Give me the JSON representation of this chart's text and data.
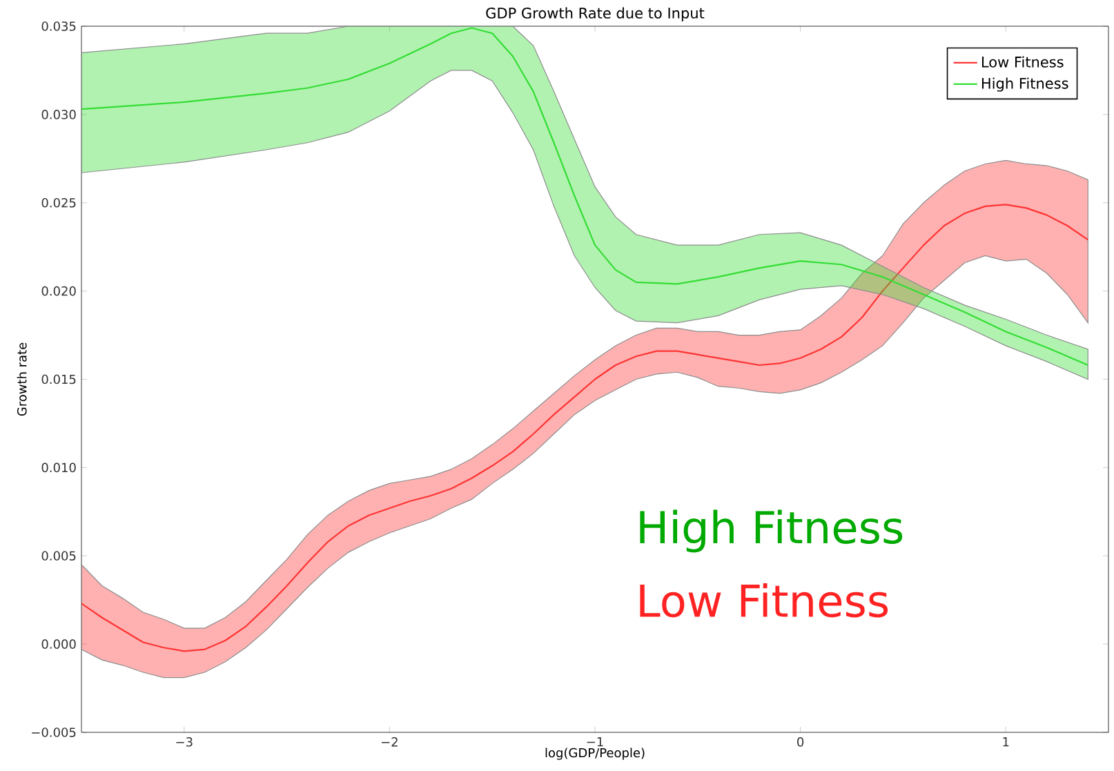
{
  "chart_data": {
    "type": "line",
    "title": "GDP Growth Rate due to Input",
    "xlabel": "log(GDP/People)",
    "ylabel": "Growth rate",
    "xlim": [
      -3.5,
      1.5
    ],
    "ylim": [
      -0.005,
      0.035
    ],
    "xticks": [
      {
        "value": -3,
        "label": "−3"
      },
      {
        "value": -2,
        "label": "−2"
      },
      {
        "value": -1,
        "label": "−1"
      },
      0,
      1
    ],
    "yticks": [
      {
        "value": -0.005,
        "label": "−0.005"
      },
      {
        "value": 0,
        "label": "0.000"
      },
      {
        "value": 0.005,
        "label": "0.005"
      },
      {
        "value": 0.01,
        "label": "0.010"
      },
      {
        "value": 0.015,
        "label": "0.015"
      },
      {
        "value": 0.02,
        "label": "0.020"
      },
      {
        "value": 0.025,
        "label": "0.025"
      },
      {
        "value": 0.03,
        "label": "0.030"
      },
      {
        "value": 0.035,
        "label": "0.035"
      }
    ],
    "grid": false,
    "legend": "top right",
    "marker": "none",
    "line_style": "solid",
    "annotations": [
      "High Fitness",
      "Low Fitness"
    ],
    "series": [
      {
        "name": "Low Fitness",
        "color": "#ff3333",
        "x": [
          -3.5,
          -3.4,
          -3.3,
          -3.2,
          -3.1,
          -3.0,
          -2.9,
          -2.8,
          -2.7,
          -2.6,
          -2.5,
          -2.4,
          -2.3,
          -2.2,
          -2.1,
          -2.0,
          -1.9,
          -1.8,
          -1.7,
          -1.6,
          -1.5,
          -1.4,
          -1.3,
          -1.2,
          -1.1,
          -1.0,
          -0.9,
          -0.8,
          -0.7,
          -0.6,
          -0.5,
          -0.4,
          -0.3,
          -0.2,
          -0.1,
          0,
          0.1,
          0.2,
          0.3,
          0.4,
          0.5,
          0.6,
          0.7,
          0.8,
          0.9,
          1.0,
          1.1,
          1.2,
          1.3,
          1.4
        ],
        "values": [
          0.0023,
          0.0015,
          0.0008,
          0.0001,
          -0.0002,
          -0.0004,
          -0.0003,
          0.0002,
          0.001,
          0.0021,
          0.0033,
          0.0046,
          0.0058,
          0.0067,
          0.0073,
          0.0077,
          0.0081,
          0.0084,
          0.0088,
          0.0094,
          0.0101,
          0.0109,
          0.0119,
          0.013,
          0.014,
          0.015,
          0.0158,
          0.0163,
          0.0166,
          0.0166,
          0.0164,
          0.0162,
          0.016,
          0.0158,
          0.0159,
          0.0162,
          0.0167,
          0.0174,
          0.0185,
          0.02,
          0.0213,
          0.0226,
          0.0237,
          0.0244,
          0.0248,
          0.0249,
          0.0247,
          0.0243,
          0.0237,
          0.0229
        ],
        "upper": [
          0.0045,
          0.0033,
          0.0026,
          0.0018,
          0.0014,
          0.0009,
          0.0009,
          0.0015,
          0.0024,
          0.0036,
          0.0048,
          0.0062,
          0.0073,
          0.0081,
          0.0087,
          0.0091,
          0.0093,
          0.0095,
          0.0099,
          0.0105,
          0.0113,
          0.0122,
          0.0132,
          0.0142,
          0.0152,
          0.0161,
          0.0169,
          0.0175,
          0.0179,
          0.0179,
          0.0177,
          0.0177,
          0.0175,
          0.0175,
          0.0177,
          0.0178,
          0.0186,
          0.0196,
          0.021,
          0.022,
          0.0238,
          0.025,
          0.026,
          0.0268,
          0.0272,
          0.0274,
          0.0272,
          0.0271,
          0.0268,
          0.0263
        ],
        "lower": [
          -0.0003,
          -0.0009,
          -0.0012,
          -0.0016,
          -0.0019,
          -0.0019,
          -0.0016,
          -0.001,
          -0.0002,
          0.0008,
          0.002,
          0.0032,
          0.0043,
          0.0052,
          0.0058,
          0.0063,
          0.0067,
          0.0071,
          0.0077,
          0.0082,
          0.0091,
          0.0099,
          0.0108,
          0.0119,
          0.013,
          0.0138,
          0.0144,
          0.015,
          0.0153,
          0.0154,
          0.0151,
          0.0146,
          0.0145,
          0.0143,
          0.0142,
          0.0144,
          0.0148,
          0.0154,
          0.0161,
          0.0169,
          0.0182,
          0.0196,
          0.0206,
          0.0216,
          0.022,
          0.0217,
          0.0218,
          0.021,
          0.0198,
          0.0182
        ]
      },
      {
        "name": "High Fitness",
        "color": "#33dd33",
        "x": [
          -3.5,
          -3.0,
          -2.6,
          -2.4,
          -2.2,
          -2.0,
          -1.8,
          -1.7,
          -1.6,
          -1.5,
          -1.4,
          -1.3,
          -1.2,
          -1.1,
          -1.0,
          -0.9,
          -0.8,
          -0.6,
          -0.4,
          -0.2,
          0,
          0.2,
          0.4,
          0.6,
          0.8,
          1.0,
          1.2,
          1.4
        ],
        "values": [
          0.0303,
          0.0307,
          0.0312,
          0.0315,
          0.032,
          0.0329,
          0.034,
          0.0346,
          0.0349,
          0.0346,
          0.0333,
          0.0313,
          0.0284,
          0.0254,
          0.0226,
          0.0212,
          0.0205,
          0.0204,
          0.0208,
          0.0213,
          0.0217,
          0.0215,
          0.0208,
          0.0198,
          0.0188,
          0.0177,
          0.0168,
          0.0158
        ],
        "upper": [
          0.0335,
          0.034,
          0.0346,
          0.0346,
          0.035,
          0.035,
          0.035,
          0.035,
          0.035,
          0.035,
          0.035,
          0.0339,
          0.0313,
          0.0286,
          0.0259,
          0.0242,
          0.0232,
          0.0226,
          0.0226,
          0.0232,
          0.0233,
          0.0226,
          0.0214,
          0.0202,
          0.0192,
          0.0184,
          0.0175,
          0.0167
        ],
        "lower": [
          0.0267,
          0.0273,
          0.028,
          0.0284,
          0.029,
          0.0302,
          0.0319,
          0.0325,
          0.0325,
          0.0319,
          0.0301,
          0.028,
          0.0248,
          0.022,
          0.0202,
          0.0189,
          0.0183,
          0.0182,
          0.0186,
          0.0195,
          0.0201,
          0.0203,
          0.0198,
          0.019,
          0.018,
          0.0169,
          0.016,
          0.015
        ]
      }
    ]
  }
}
